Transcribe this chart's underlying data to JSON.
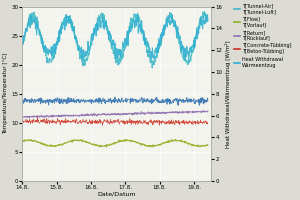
{
  "xlabel": "Date/Datum",
  "ylabel_left": "Temperature/Temperatur [°C]",
  "ylabel_right": "Heat Withdrawal/Wärmeentzug [W/m²]",
  "xlim": [
    0,
    5.5
  ],
  "ylim_left": [
    0,
    30
  ],
  "ylim_right": [
    0,
    16
  ],
  "yticks_left": [
    0,
    5,
    10,
    15,
    20,
    25,
    30
  ],
  "yticks_right": [
    0,
    2,
    4,
    6,
    8,
    10,
    12,
    14,
    16
  ],
  "xtick_labels": [
    "14.8.",
    "15.8.",
    "16.8.",
    "17.8.",
    "18.8.",
    "19.8."
  ],
  "xtick_positions": [
    0,
    1,
    2,
    3,
    4,
    5
  ],
  "colors": {
    "tunnel_air": "#40b8c8",
    "flow_dark": "#3070b0",
    "return": "#9070b0",
    "concrete": "#cc3020",
    "flow_green": "#90b020",
    "heat_withdrawal": "#30b0d0"
  },
  "legend_entries": [
    {
      "label": "T[Tunnel-Air]\nT[Tunnel-Luft]",
      "color": "#40b8c8"
    },
    {
      "label": "T[Flow]\nT[Vorlauf]",
      "color": "#90b020"
    },
    {
      "label": "T[Return]\nT[Rücklauf]",
      "color": "#9070b0"
    },
    {
      "label": "T[Concrete-Tübbing]\nT[Beton-Tübbing]",
      "color": "#cc3020"
    },
    {
      "label": "Heat Withdrawal\nWärmeentzug",
      "color": "#30b0d0"
    }
  ],
  "background_color": "#dcdcd4",
  "plot_bg_color": "#f4f4ee",
  "grid_color": "#ffffff",
  "figsize": [
    3.0,
    2.0
  ],
  "dpi": 100
}
